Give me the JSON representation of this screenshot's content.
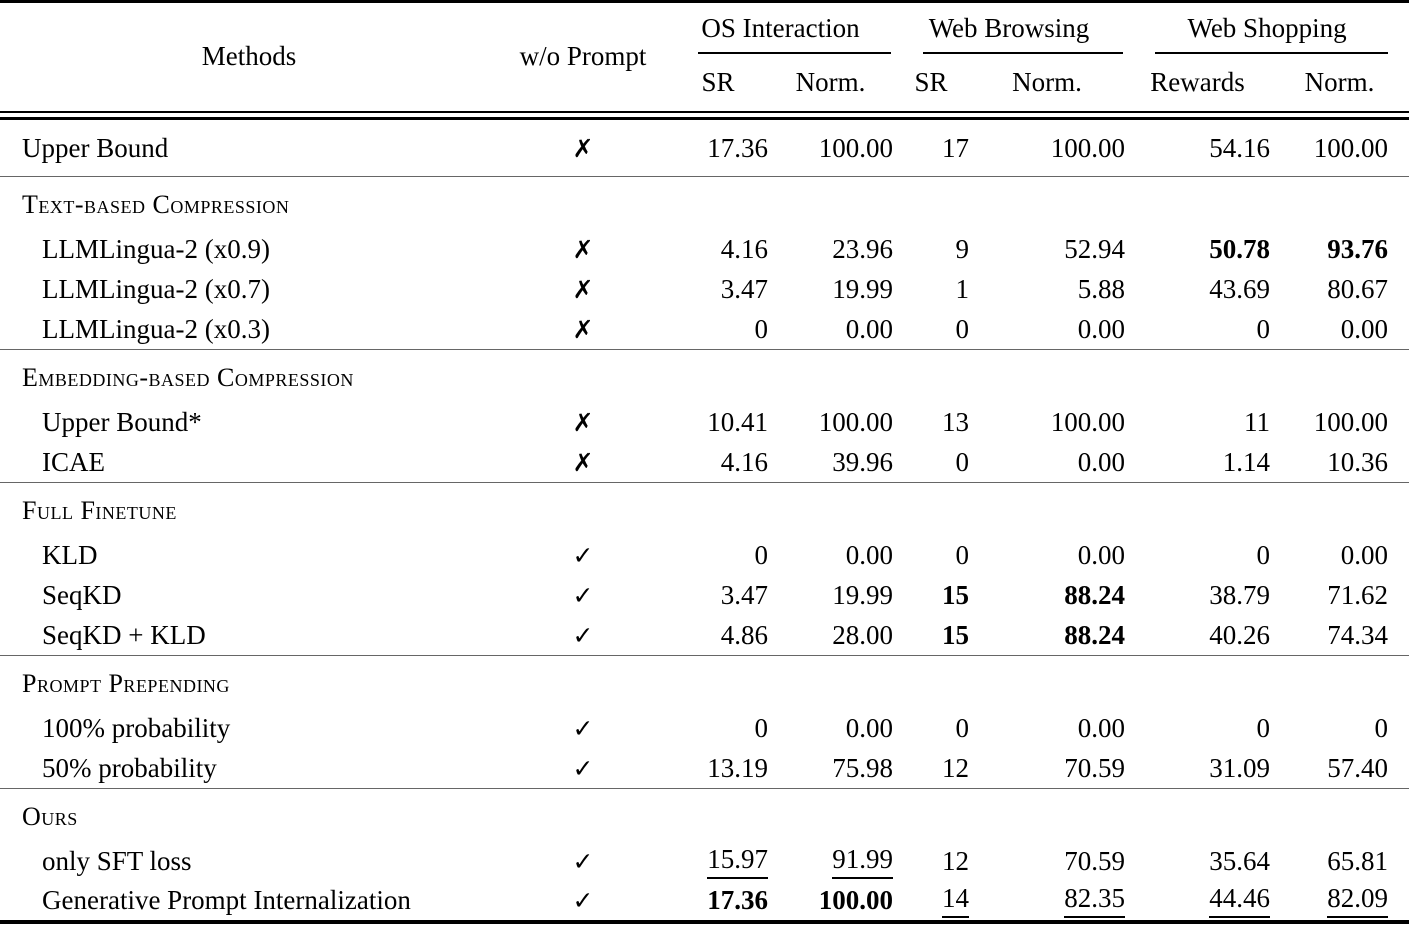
{
  "page": {
    "background": "#ffffff",
    "text_color": "#000000",
    "rule_color": "#000000",
    "section_rule_color": "#666666"
  },
  "marks": {
    "cross": "✗",
    "check": "✓"
  },
  "header": {
    "methods": "Methods",
    "wo_prompt": "w/o Prompt",
    "groups": [
      {
        "label": "OS Interaction",
        "sub": [
          "SR",
          "Norm."
        ]
      },
      {
        "label": "Web Browsing",
        "sub": [
          "SR",
          "Norm."
        ]
      },
      {
        "label": "Web Shopping",
        "sub": [
          "Rewards",
          "Norm."
        ]
      }
    ]
  },
  "sections": [
    {
      "title": "",
      "rows": [
        {
          "method": "Upper Bound",
          "indent": false,
          "wo": "cross",
          "values": [
            "17.36",
            "100.00",
            "17",
            "100.00",
            "54.16",
            "100.00"
          ],
          "bold": [],
          "underline": []
        }
      ]
    },
    {
      "title": "Text-based Compression",
      "rows": [
        {
          "method": "LLMLingua-2 (x0.9)",
          "indent": true,
          "wo": "cross",
          "values": [
            "4.16",
            "23.96",
            "9",
            "52.94",
            "50.78",
            "93.76"
          ],
          "bold": [
            4,
            5
          ],
          "underline": []
        },
        {
          "method": "LLMLingua-2 (x0.7)",
          "indent": true,
          "wo": "cross",
          "values": [
            "3.47",
            "19.99",
            "1",
            "5.88",
            "43.69",
            "80.67"
          ],
          "bold": [],
          "underline": []
        },
        {
          "method": "LLMLingua-2 (x0.3)",
          "indent": true,
          "wo": "cross",
          "values": [
            "0",
            "0.00",
            "0",
            "0.00",
            "0",
            "0.00"
          ],
          "bold": [],
          "underline": []
        }
      ]
    },
    {
      "title": "Embedding-based Compression",
      "rows": [
        {
          "method": "Upper Bound*",
          "indent": true,
          "wo": "cross",
          "values": [
            "10.41",
            "100.00",
            "13",
            "100.00",
            "11",
            "100.00"
          ],
          "bold": [],
          "underline": []
        },
        {
          "method": "ICAE",
          "indent": true,
          "wo": "cross",
          "values": [
            "4.16",
            "39.96",
            "0",
            "0.00",
            "1.14",
            "10.36"
          ],
          "bold": [],
          "underline": []
        }
      ]
    },
    {
      "title": "Full Finetune",
      "rows": [
        {
          "method": "KLD",
          "indent": true,
          "wo": "check",
          "values": [
            "0",
            "0.00",
            "0",
            "0.00",
            "0",
            "0.00"
          ],
          "bold": [],
          "underline": []
        },
        {
          "method": "SeqKD",
          "indent": true,
          "wo": "check",
          "values": [
            "3.47",
            "19.99",
            "15",
            "88.24",
            "38.79",
            "71.62"
          ],
          "bold": [
            2,
            3
          ],
          "underline": []
        },
        {
          "method": "SeqKD + KLD",
          "indent": true,
          "wo": "check",
          "values": [
            "4.86",
            "28.00",
            "15",
            "88.24",
            "40.26",
            "74.34"
          ],
          "bold": [
            2,
            3
          ],
          "underline": []
        }
      ]
    },
    {
      "title": "Prompt Prepending",
      "rows": [
        {
          "method": "100% probability",
          "indent": true,
          "wo": "check",
          "values": [
            "0",
            "0.00",
            "0",
            "0.00",
            "0",
            "0"
          ],
          "bold": [],
          "underline": []
        },
        {
          "method": "50% probability",
          "indent": true,
          "wo": "check",
          "values": [
            "13.19",
            "75.98",
            "12",
            "70.59",
            "31.09",
            "57.40"
          ],
          "bold": [],
          "underline": []
        }
      ]
    },
    {
      "title": "Ours",
      "rows": [
        {
          "method": "only SFT loss",
          "indent": true,
          "wo": "check",
          "values": [
            "15.97",
            "91.99",
            "12",
            "70.59",
            "35.64",
            "65.81"
          ],
          "bold": [],
          "underline": [
            0,
            1
          ]
        },
        {
          "method": "Generative Prompt Internalization",
          "indent": true,
          "wo": "check",
          "values": [
            "17.36",
            "100.00",
            "14",
            "82.35",
            "44.46",
            "82.09"
          ],
          "bold": [
            0,
            1
          ],
          "underline": [
            2,
            3,
            4,
            5
          ]
        }
      ]
    }
  ]
}
